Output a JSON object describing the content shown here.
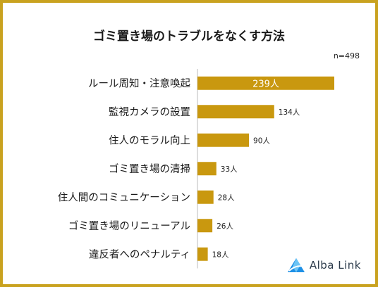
{
  "chart_data": {
    "type": "bar",
    "orientation": "horizontal",
    "title": "ゴミ置き場のトラブルをなくす方法",
    "sample_size": "n=498",
    "categories": [
      "ルール周知・注意喚起",
      "監視カメラの設置",
      "住人のモラル向上",
      "ゴミ置き場の清掃",
      "住人間のコミュニケーション",
      "ゴミ置き場のリニューアル",
      "違反者へのペナルティ"
    ],
    "values": [
      239,
      134,
      90,
      33,
      28,
      26,
      18
    ],
    "value_labels": [
      "239人",
      "134人",
      "90人",
      "33人",
      "28人",
      "26人",
      "18人"
    ],
    "bar_color": "#c9980f",
    "axis_color": "#bbbbbb",
    "xlim": [
      0,
      239
    ]
  },
  "brand": {
    "name": "Alba Link",
    "logo_icon": "alba-link-logo-icon",
    "logo_color": "#1e90e6"
  },
  "frame_color": "#c9a21f"
}
